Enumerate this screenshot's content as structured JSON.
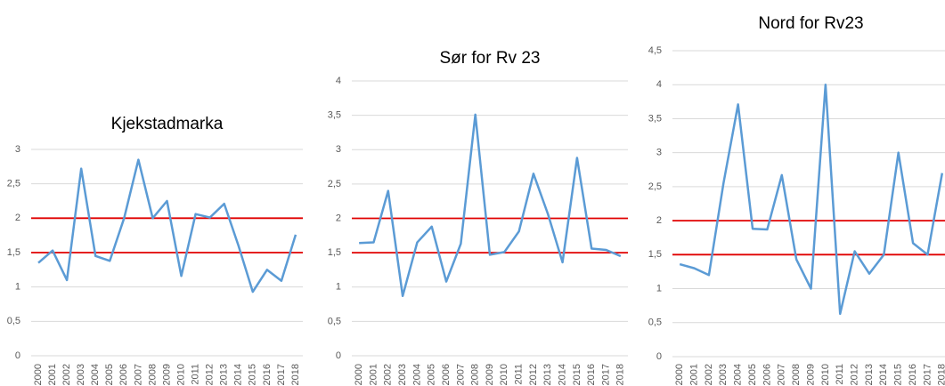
{
  "chart_data": [
    {
      "type": "line",
      "title": "Kjekstadmarka",
      "categories": [
        "2000",
        "2001",
        "2002",
        "2003",
        "2004",
        "2005",
        "2006",
        "2007",
        "2008",
        "2009",
        "2010",
        "2011",
        "2012",
        "2013",
        "2014",
        "2015",
        "2016",
        "2017",
        "2018"
      ],
      "values": [
        1.35,
        1.53,
        1.1,
        2.72,
        1.45,
        1.38,
        2.0,
        2.85,
        2.0,
        2.25,
        1.16,
        2.06,
        2.01,
        2.21,
        1.6,
        0.93,
        1.25,
        1.09,
        1.76
      ],
      "color": "#5b9bd5",
      "ylim": [
        0,
        3
      ],
      "yticks": [
        0,
        {
          "value": 0.5,
          "label": "0,5"
        },
        1,
        {
          "value": 1.5,
          "label": "1,5"
        },
        2,
        {
          "value": 2.5,
          "label": "2,5"
        },
        3
      ],
      "grid": true,
      "hlines": [
        2,
        1.5
      ],
      "hline_color": "#e00000"
    },
    {
      "type": "line",
      "title": "Sør for Rv 23",
      "categories": [
        "2000",
        "2001",
        "2002",
        "2003",
        "2004",
        "2005",
        "2006",
        "2007",
        "2008",
        "2009",
        "2010",
        "2011",
        "2012",
        "2013",
        "2014",
        "2015",
        "2016",
        "2017",
        "2018"
      ],
      "values": [
        1.64,
        1.65,
        2.4,
        0.87,
        1.65,
        1.88,
        1.08,
        1.63,
        3.51,
        1.47,
        1.51,
        1.81,
        2.65,
        2.06,
        1.36,
        2.88,
        1.56,
        1.54,
        1.45
      ],
      "color": "#5b9bd5",
      "ylim": [
        0,
        4
      ],
      "yticks": [
        0,
        {
          "value": 0.5,
          "label": "0,5"
        },
        1,
        {
          "value": 1.5,
          "label": "1,5"
        },
        2,
        {
          "value": 2.5,
          "label": "2,5"
        },
        3,
        {
          "value": 3.5,
          "label": "3,5"
        },
        4
      ],
      "grid": true,
      "hlines": [
        2,
        1.5
      ],
      "hline_color": "#e00000"
    },
    {
      "type": "line",
      "title": "Nord for Rv23",
      "categories": [
        "2000",
        "2001",
        "2002",
        "2003",
        "2004",
        "2005",
        "2006",
        "2007",
        "2008",
        "2009",
        "2010",
        "2011",
        "2012",
        "2013",
        "2014",
        "2015",
        "2016",
        "2017",
        "2018"
      ],
      "values": [
        1.36,
        1.3,
        1.2,
        2.55,
        3.71,
        1.88,
        1.87,
        2.67,
        1.43,
        1.0,
        4.0,
        0.63,
        1.55,
        1.22,
        1.5,
        3.0,
        1.67,
        1.5,
        2.7
      ],
      "color": "#5b9bd5",
      "ylim": [
        0,
        4.5
      ],
      "yticks": [
        0,
        {
          "value": 0.5,
          "label": "0,5"
        },
        1,
        {
          "value": 1.5,
          "label": "1,5"
        },
        2,
        {
          "value": 2.5,
          "label": "2,5"
        },
        3,
        {
          "value": 3.5,
          "label": "3,5"
        },
        4,
        {
          "value": 4.5,
          "label": "4,5"
        }
      ],
      "grid": true,
      "hlines": [
        2,
        1.5
      ],
      "hline_color": "#e00000"
    }
  ]
}
